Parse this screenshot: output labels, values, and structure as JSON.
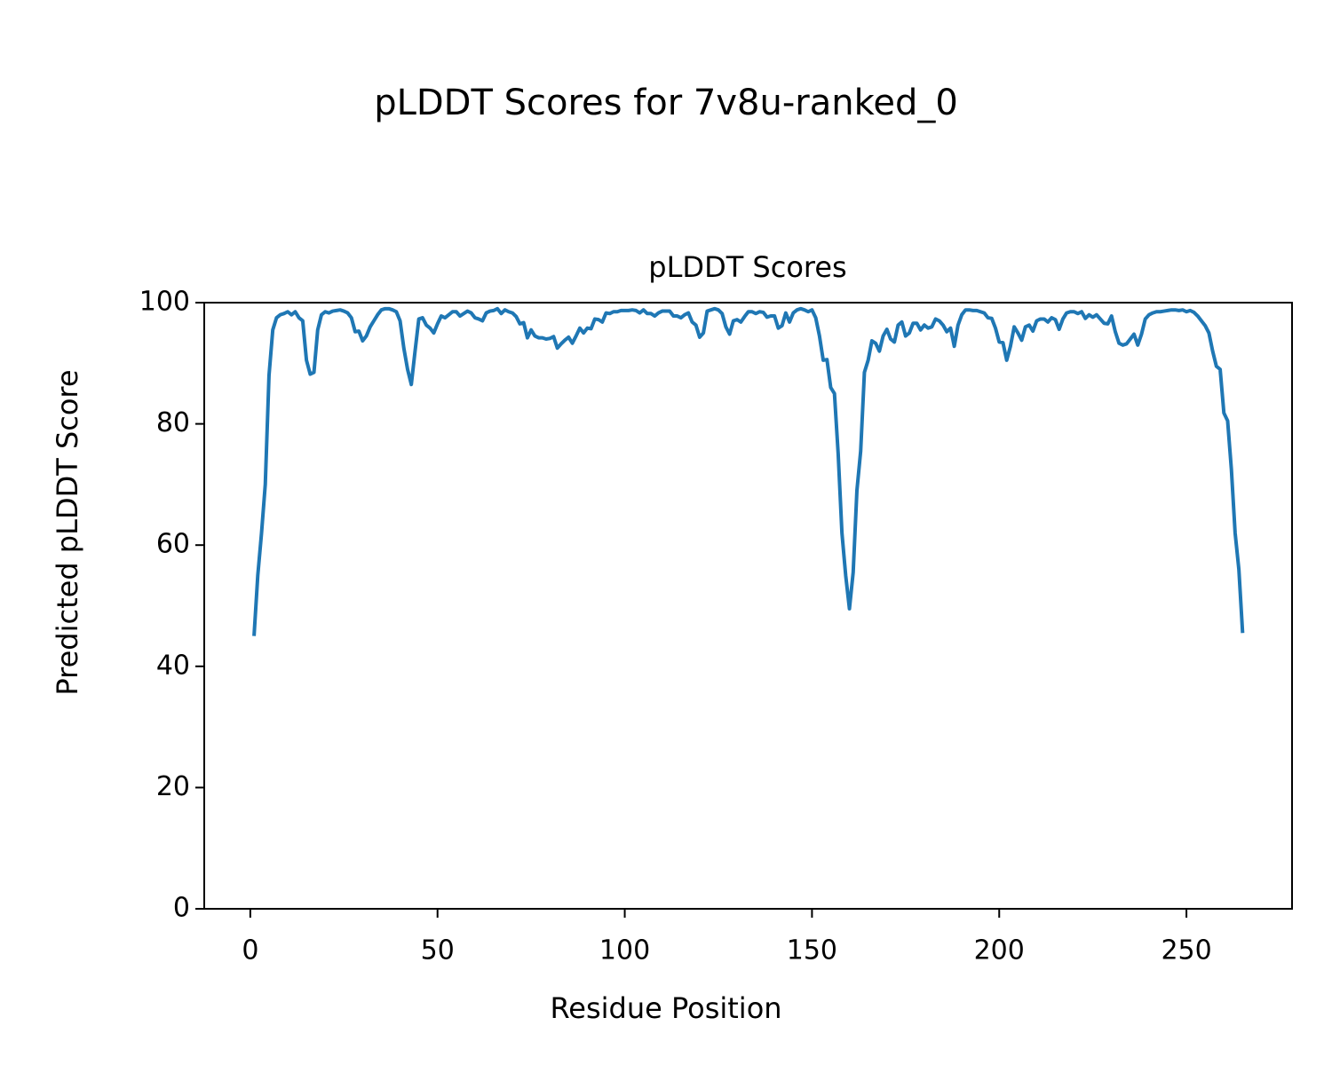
{
  "chart_data": {
    "type": "line",
    "title": "pLDDT Scores for 7v8u-ranked_0",
    "subtitle": "pLDDT Scores",
    "x_label": "Residue Position",
    "y_label": "Predicted pLDDT Score",
    "xlim": [
      -12.3,
      278.2
    ],
    "ylim": [
      0,
      100
    ],
    "xticks": [
      0,
      50,
      100,
      150,
      200,
      250
    ],
    "yticks": [
      0,
      20,
      40,
      60,
      80,
      100
    ],
    "grid": false,
    "series": [
      {
        "name": "pLDDT",
        "color": "#1f77b4",
        "x": [
          1,
          2,
          3,
          4,
          5,
          6,
          7,
          8,
          9,
          10,
          11,
          12,
          13,
          14,
          15,
          16,
          17,
          18,
          19,
          20,
          21,
          22,
          23,
          24,
          25,
          26,
          27,
          28,
          29,
          30,
          31,
          32,
          33,
          34,
          35,
          36,
          37,
          38,
          39,
          40,
          41,
          42,
          43,
          44,
          45,
          46,
          47,
          48,
          49,
          50,
          51,
          52,
          53,
          54,
          55,
          56,
          57,
          58,
          59,
          60,
          61,
          62,
          63,
          64,
          65,
          66,
          67,
          68,
          69,
          70,
          71,
          72,
          73,
          74,
          75,
          76,
          77,
          78,
          79,
          80,
          81,
          82,
          83,
          84,
          85,
          86,
          87,
          88,
          89,
          90,
          91,
          92,
          93,
          94,
          95,
          96,
          97,
          98,
          99,
          100,
          101,
          102,
          103,
          104,
          105,
          106,
          107,
          108,
          109,
          110,
          111,
          112,
          113,
          114,
          115,
          116,
          117,
          118,
          119,
          120,
          121,
          122,
          123,
          124,
          125,
          126,
          127,
          128,
          129,
          130,
          131,
          132,
          133,
          134,
          135,
          136,
          137,
          138,
          139,
          140,
          141,
          142,
          143,
          144,
          145,
          146,
          147,
          148,
          149,
          150,
          151,
          152,
          153,
          154,
          155,
          156,
          157,
          158,
          159,
          160,
          161,
          162,
          163,
          164,
          165,
          166,
          167,
          168,
          169,
          170,
          171,
          172,
          173,
          174,
          175,
          176,
          177,
          178,
          179,
          180,
          181,
          182,
          183,
          184,
          185,
          186,
          187,
          188,
          189,
          190,
          191,
          192,
          193,
          194,
          195,
          196,
          197,
          198,
          199,
          200,
          201,
          202,
          203,
          204,
          205,
          206,
          207,
          208,
          209,
          210,
          211,
          212,
          213,
          214,
          215,
          216,
          217,
          218,
          219,
          220,
          221,
          222,
          223,
          224,
          225,
          226,
          227,
          228,
          229,
          230,
          231,
          232,
          233,
          234,
          235,
          236,
          237,
          238,
          239,
          240,
          241,
          242,
          243,
          244,
          245,
          246,
          247,
          248,
          249,
          250,
          251,
          252,
          253,
          254,
          255,
          256,
          257,
          258,
          259,
          260,
          261,
          262,
          263,
          264,
          265
        ],
        "values": [
          45,
          55,
          62,
          70,
          88,
          95.5,
          97.5,
          98,
          98.2,
          98.5,
          98,
          98.5,
          97.5,
          97,
          90.5,
          88.2,
          88.5,
          95.5,
          98,
          98.5,
          98.3,
          98.6,
          98.7,
          98.8,
          98.6,
          98.3,
          97.5,
          95.2,
          95.3,
          93.7,
          94.5,
          96,
          97,
          98,
          98.8,
          99,
          99,
          98.8,
          98.5,
          97,
          92.5,
          89,
          86.5,
          92,
          97.3,
          97.5,
          96.3,
          95.8,
          95,
          96.5,
          97.8,
          97.5,
          98,
          98.5,
          98.5,
          97.8,
          98.2,
          98.6,
          98.3,
          97.5,
          97.3,
          97,
          98.3,
          98.6,
          98.7,
          99,
          98.2,
          98.8,
          98.5,
          98.3,
          97.7,
          96.5,
          96.7,
          94.2,
          95.5,
          94.5,
          94.2,
          94.2,
          94,
          94.1,
          94.4,
          92.5,
          93.2,
          93.8,
          94.3,
          93.3,
          94.5,
          95.8,
          95,
          95.8,
          95.7,
          97.3,
          97.2,
          96.8,
          98.3,
          98.2,
          98.5,
          98.5,
          98.7,
          98.7,
          98.7,
          98.8,
          98.7,
          98.3,
          98.8,
          98.2,
          98.2,
          97.8,
          98.3,
          98.6,
          98.6,
          98.6,
          97.8,
          97.8,
          97.5,
          98,
          98.3,
          96.8,
          96.3,
          94.3,
          95,
          98.6,
          98.8,
          99,
          98.8,
          98.2,
          96,
          94.8,
          97,
          97.2,
          96.8,
          97.7,
          98.5,
          98.5,
          98.2,
          98.5,
          98.4,
          97.6,
          97.8,
          97.8,
          95.8,
          96.2,
          98.3,
          96.8,
          98.3,
          98.8,
          99,
          98.8,
          98.5,
          98.8,
          97.5,
          94.5,
          90.5,
          90.6,
          86,
          85,
          75,
          62,
          55,
          49.5,
          55.5,
          69,
          75.5,
          88.5,
          90.5,
          93.7,
          93.3,
          92,
          94.5,
          95.6,
          94,
          93.5,
          96.3,
          96.8,
          94.5,
          95,
          96.6,
          96.6,
          95.5,
          96.3,
          95.8,
          96,
          97.3,
          97,
          96.3,
          95.2,
          95.8,
          92.8,
          96.3,
          98,
          98.8,
          98.8,
          98.7,
          98.7,
          98.5,
          98.3,
          97.5,
          97.4,
          95.8,
          93.5,
          93.4,
          90.5,
          92.8,
          96,
          95,
          93.8,
          96,
          96.3,
          95.3,
          97,
          97.3,
          97.3,
          96.8,
          97.5,
          97.2,
          95.6,
          97.3,
          98.3,
          98.5,
          98.5,
          98.2,
          98.5,
          97.4,
          98,
          97.6,
          98,
          97.3,
          96.6,
          96.5,
          97.8,
          95.2,
          93.3,
          93,
          93.2,
          94,
          94.8,
          93,
          94.8,
          97.3,
          98,
          98.3,
          98.5,
          98.5,
          98.6,
          98.7,
          98.8,
          98.8,
          98.7,
          98.8,
          98.5,
          98.7,
          98.4,
          97.8,
          97,
          96.2,
          95,
          92,
          89.5,
          89,
          81.8,
          80.5,
          72.5,
          62,
          56,
          45.5
        ]
      }
    ]
  }
}
